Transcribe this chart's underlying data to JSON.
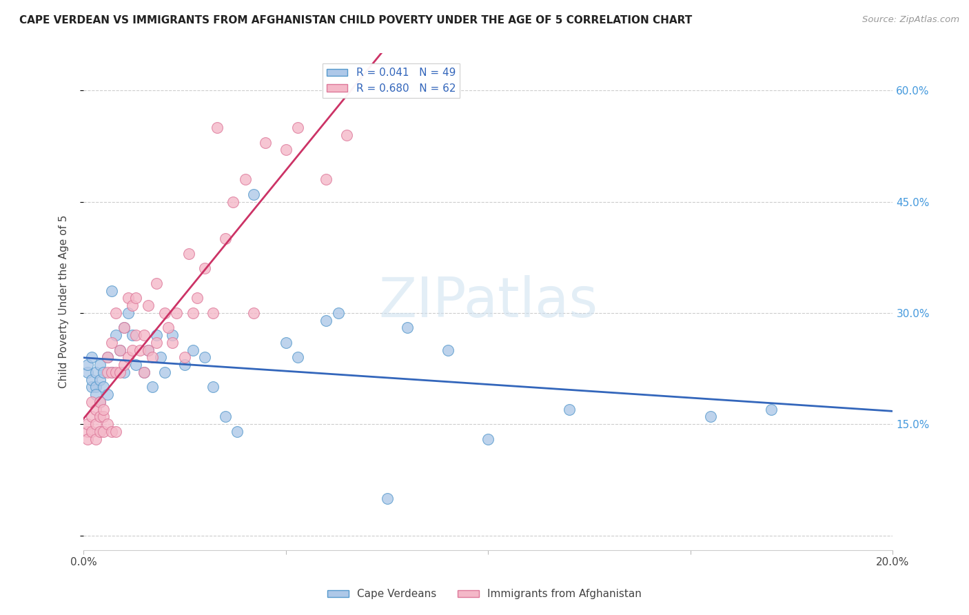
{
  "title": "CAPE VERDEAN VS IMMIGRANTS FROM AFGHANISTAN CHILD POVERTY UNDER THE AGE OF 5 CORRELATION CHART",
  "source": "Source: ZipAtlas.com",
  "ylabel": "Child Poverty Under the Age of 5",
  "xlim": [
    0.0,
    0.2
  ],
  "ylim": [
    -0.02,
    0.65
  ],
  "yticks": [
    0.0,
    0.15,
    0.3,
    0.45,
    0.6
  ],
  "ytick_labels_right": [
    "",
    "15.0%",
    "30.0%",
    "45.0%",
    "60.0%"
  ],
  "xticks": [
    0.0,
    0.05,
    0.1,
    0.15,
    0.2
  ],
  "xtick_labels": [
    "0.0%",
    "",
    "",
    "",
    "20.0%"
  ],
  "blue_R": 0.041,
  "blue_N": 49,
  "pink_R": 0.68,
  "pink_N": 62,
  "blue_fill": "#aec8e8",
  "pink_fill": "#f4b8c8",
  "blue_edge": "#5599cc",
  "pink_edge": "#dd7799",
  "blue_line_color": "#3366bb",
  "pink_line_color": "#cc3366",
  "legend_label_blue": "Cape Verdeans",
  "legend_label_pink": "Immigrants from Afghanistan",
  "watermark": "ZIPatlas",
  "blue_x": [
    0.001,
    0.001,
    0.002,
    0.002,
    0.002,
    0.003,
    0.003,
    0.003,
    0.004,
    0.004,
    0.004,
    0.005,
    0.005,
    0.006,
    0.006,
    0.007,
    0.007,
    0.008,
    0.009,
    0.01,
    0.01,
    0.011,
    0.012,
    0.013,
    0.015,
    0.016,
    0.017,
    0.018,
    0.019,
    0.02,
    0.022,
    0.025,
    0.027,
    0.03,
    0.032,
    0.035,
    0.038,
    0.042,
    0.05,
    0.053,
    0.06,
    0.063,
    0.075,
    0.08,
    0.09,
    0.1,
    0.12,
    0.155,
    0.17
  ],
  "blue_y": [
    0.22,
    0.23,
    0.2,
    0.21,
    0.24,
    0.2,
    0.22,
    0.19,
    0.21,
    0.18,
    0.23,
    0.22,
    0.2,
    0.24,
    0.19,
    0.33,
    0.22,
    0.27,
    0.25,
    0.28,
    0.22,
    0.3,
    0.27,
    0.23,
    0.22,
    0.25,
    0.2,
    0.27,
    0.24,
    0.22,
    0.27,
    0.23,
    0.25,
    0.24,
    0.2,
    0.16,
    0.14,
    0.46,
    0.26,
    0.24,
    0.29,
    0.3,
    0.05,
    0.28,
    0.25,
    0.13,
    0.17,
    0.16,
    0.17
  ],
  "pink_x": [
    0.001,
    0.001,
    0.001,
    0.002,
    0.002,
    0.002,
    0.003,
    0.003,
    0.003,
    0.004,
    0.004,
    0.004,
    0.005,
    0.005,
    0.005,
    0.006,
    0.006,
    0.006,
    0.007,
    0.007,
    0.007,
    0.008,
    0.008,
    0.008,
    0.009,
    0.009,
    0.01,
    0.01,
    0.011,
    0.011,
    0.012,
    0.012,
    0.013,
    0.013,
    0.014,
    0.015,
    0.015,
    0.016,
    0.016,
    0.017,
    0.018,
    0.018,
    0.02,
    0.021,
    0.022,
    0.023,
    0.025,
    0.026,
    0.027,
    0.028,
    0.03,
    0.032,
    0.033,
    0.035,
    0.037,
    0.04,
    0.042,
    0.045,
    0.05,
    0.053,
    0.06,
    0.065
  ],
  "pink_y": [
    0.14,
    0.15,
    0.13,
    0.14,
    0.16,
    0.18,
    0.13,
    0.15,
    0.17,
    0.14,
    0.16,
    0.18,
    0.14,
    0.16,
    0.17,
    0.15,
    0.22,
    0.24,
    0.14,
    0.22,
    0.26,
    0.14,
    0.22,
    0.3,
    0.22,
    0.25,
    0.23,
    0.28,
    0.24,
    0.32,
    0.25,
    0.31,
    0.27,
    0.32,
    0.25,
    0.22,
    0.27,
    0.25,
    0.31,
    0.24,
    0.26,
    0.34,
    0.3,
    0.28,
    0.26,
    0.3,
    0.24,
    0.38,
    0.3,
    0.32,
    0.36,
    0.3,
    0.55,
    0.4,
    0.45,
    0.48,
    0.3,
    0.53,
    0.52,
    0.55,
    0.48,
    0.54
  ]
}
